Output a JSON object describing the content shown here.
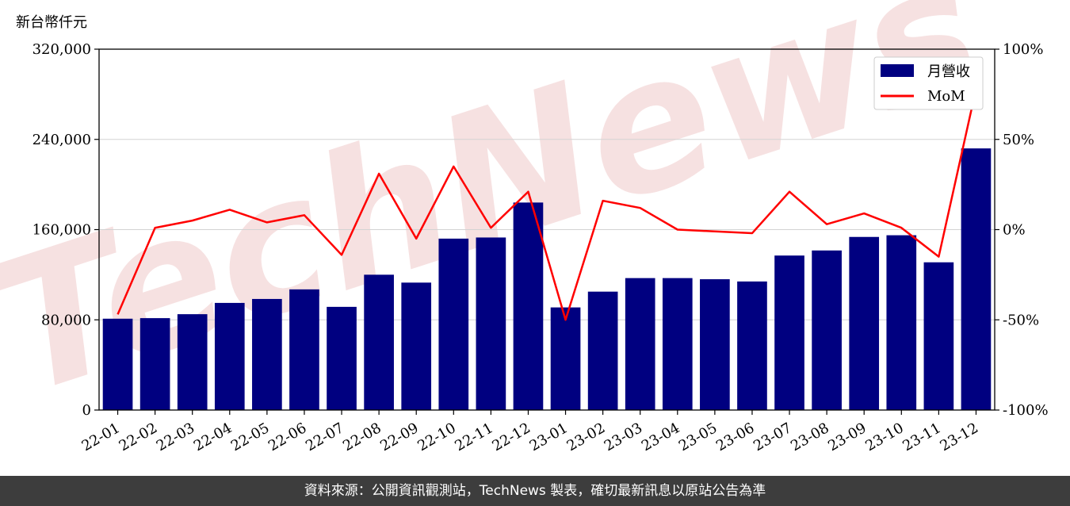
{
  "colors": {
    "bars": "#000080",
    "line": "#ff0000",
    "grid": "#d3d3d3",
    "footer_bg": "#3d3d3d",
    "watermark": "#f4d8d8"
  },
  "watermark_text": "TechNews",
  "footer": {
    "text": "資料來源：公開資訊觀測站，TechNews 製表，確切最新訊息以原站公告為準"
  },
  "chart_data": {
    "type": "bar",
    "unit_label": "新台幣仟元",
    "categories": [
      "22-01",
      "22-02",
      "22-03",
      "22-04",
      "22-05",
      "22-06",
      "22-07",
      "22-08",
      "22-09",
      "22-10",
      "22-11",
      "22-12",
      "23-01",
      "23-02",
      "23-03",
      "23-04",
      "23-05",
      "23-06",
      "23-07",
      "23-08",
      "23-09",
      "23-10",
      "23-11",
      "23-12"
    ],
    "series": [
      {
        "name": "月營收",
        "type": "bar",
        "axis": "left",
        "values": [
          81000,
          81500,
          85000,
          95000,
          98500,
          107000,
          91500,
          120000,
          113000,
          152000,
          153000,
          184000,
          91000,
          105000,
          117000,
          117000,
          116000,
          114000,
          137000,
          141500,
          153500,
          155000,
          131000,
          232000
        ]
      },
      {
        "name": "MoM",
        "type": "line",
        "axis": "right",
        "values": [
          -47,
          1,
          5,
          11,
          4,
          8,
          -14,
          31,
          -5,
          35,
          1,
          21,
          -50,
          16,
          12,
          0,
          -1,
          -2,
          21,
          3,
          9,
          1,
          -15,
          78
        ]
      }
    ],
    "y_left": {
      "min": 0,
      "max": 320000,
      "ticks": [
        "0",
        "80,000",
        "160,000",
        "240,000",
        "320,000"
      ],
      "tick_values": [
        0,
        80000,
        160000,
        240000,
        320000
      ]
    },
    "y_right": {
      "min": -100,
      "max": 100,
      "ticks": [
        "-100%",
        "-50%",
        "0%",
        "50%",
        "100%"
      ],
      "tick_values": [
        -100,
        -50,
        0,
        50,
        100
      ]
    },
    "grid": true,
    "legend_position": "top-right"
  }
}
